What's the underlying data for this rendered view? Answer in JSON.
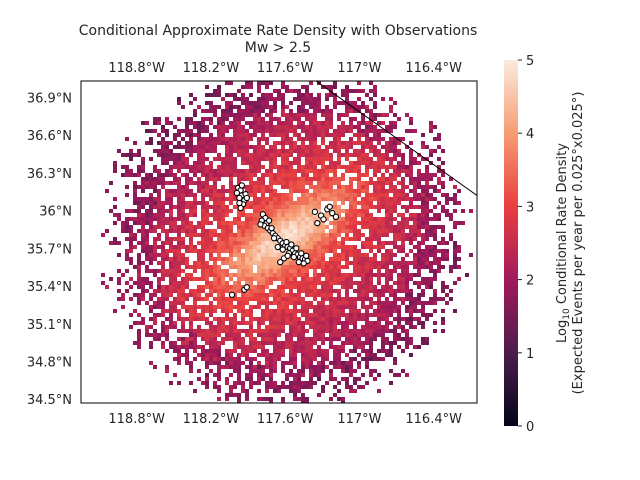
{
  "chart_data": {
    "type": "heatmap",
    "title": "Conditional Approximate Rate Density with Observations",
    "subtitle": "Mw > 2.5",
    "x_ticks": [
      "118.8°W",
      "118.2°W",
      "117.6°W",
      "117°W",
      "116.4°W"
    ],
    "x_tick_values": [
      -118.8,
      -118.2,
      -117.6,
      -117.0,
      -116.4
    ],
    "y_ticks": [
      "36.9°N",
      "36.6°N",
      "36.3°N",
      "36°N",
      "35.7°N",
      "35.4°N",
      "35.1°N",
      "34.8°N",
      "34.5°N"
    ],
    "y_tick_values": [
      36.9,
      36.6,
      36.3,
      36.0,
      35.7,
      35.4,
      35.1,
      34.8,
      34.5
    ],
    "xlim": [
      -119.25,
      -116.05
    ],
    "ylim": [
      34.47,
      37.03
    ],
    "grid": false,
    "colorbar": {
      "label_prefix": "Log",
      "label_subscript": "10",
      "label_line1_rest": " Conditional Rate Density",
      "label_line2": "(Expected Events per year per 0.025°x0.025°)",
      "min": 0,
      "max": 5,
      "ticks": [
        "0",
        "1",
        "2",
        "3",
        "4",
        "5"
      ],
      "colormap": "rocket",
      "colors": [
        "#03051a",
        "#4c1d4b",
        "#a11a5b",
        "#e83f3f",
        "#f69c73",
        "#faebdd"
      ]
    },
    "density_field": {
      "center": [
        -117.6,
        35.78
      ],
      "fault_azimuth_deg": -35,
      "peak_log10": 4.8,
      "outer_radius_deg": 1.55,
      "background_log10": 1.9
    },
    "observations": {
      "marker": "white circle, black edge",
      "points": [
        [
          -117.98,
          36.18
        ],
        [
          -117.96,
          36.16
        ],
        [
          -117.95,
          36.12
        ],
        [
          -117.97,
          36.1
        ],
        [
          -117.93,
          36.08
        ],
        [
          -117.94,
          36.05
        ],
        [
          -117.96,
          36.02
        ],
        [
          -117.92,
          36.13
        ],
        [
          -117.99,
          36.14
        ],
        [
          -117.95,
          36.2
        ],
        [
          -117.91,
          36.1
        ],
        [
          -117.97,
          36.06
        ],
        [
          -117.78,
          35.97
        ],
        [
          -117.76,
          35.94
        ],
        [
          -117.79,
          35.92
        ],
        [
          -117.75,
          35.9
        ],
        [
          -117.77,
          35.88
        ],
        [
          -117.74,
          35.86
        ],
        [
          -117.72,
          35.84
        ],
        [
          -117.7,
          35.82
        ],
        [
          -117.68,
          35.8
        ],
        [
          -117.66,
          35.78
        ],
        [
          -117.64,
          35.76
        ],
        [
          -117.62,
          35.74
        ],
        [
          -117.6,
          35.72
        ],
        [
          -117.58,
          35.71
        ],
        [
          -117.56,
          35.7
        ],
        [
          -117.54,
          35.68
        ],
        [
          -117.52,
          35.66
        ],
        [
          -117.5,
          35.65
        ],
        [
          -117.48,
          35.63
        ],
        [
          -117.46,
          35.62
        ],
        [
          -117.44,
          35.61
        ],
        [
          -117.42,
          35.6
        ],
        [
          -117.62,
          35.69
        ],
        [
          -117.57,
          35.66
        ],
        [
          -117.53,
          35.63
        ],
        [
          -117.49,
          35.59
        ],
        [
          -117.59,
          35.75
        ],
        [
          -117.55,
          35.73
        ],
        [
          -117.51,
          35.7
        ],
        [
          -117.47,
          35.66
        ],
        [
          -117.45,
          35.58
        ],
        [
          -117.43,
          35.64
        ],
        [
          -117.69,
          35.78
        ],
        [
          -117.71,
          35.86
        ],
        [
          -117.8,
          35.89
        ],
        [
          -117.73,
          35.92
        ],
        [
          -117.66,
          35.71
        ],
        [
          -117.61,
          35.62
        ],
        [
          -117.64,
          35.59
        ],
        [
          -117.58,
          35.64
        ],
        [
          -117.36,
          35.99
        ],
        [
          -117.31,
          35.96
        ],
        [
          -117.26,
          36.01
        ],
        [
          -117.22,
          35.98
        ],
        [
          -117.19,
          35.95
        ],
        [
          -117.29,
          35.93
        ],
        [
          -117.34,
          35.9
        ],
        [
          -117.24,
          36.03
        ],
        [
          -118.03,
          35.33
        ],
        [
          -117.93,
          35.37
        ],
        [
          -117.91,
          35.39
        ]
      ]
    },
    "boundary_line": [
      [
        -117.35,
        37.03
      ],
      [
        -116.05,
        36.12
      ]
    ]
  }
}
